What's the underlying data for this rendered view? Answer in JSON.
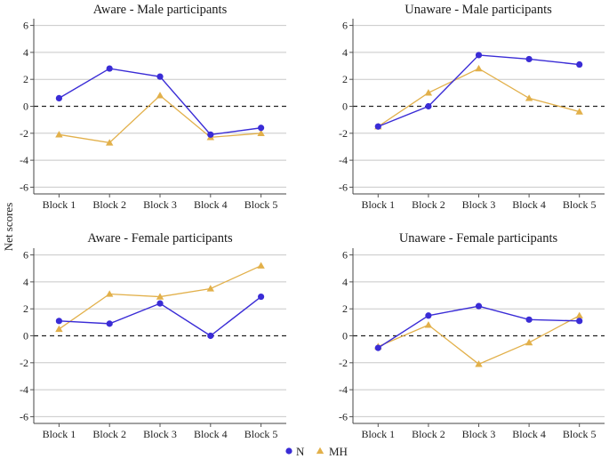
{
  "colors": {
    "N": "#3a2cd6",
    "MH": "#e2b04a",
    "grid": "#c8c8c8",
    "zero": "#222222"
  },
  "ylabel": "Net scores",
  "legend": [
    {
      "name": "N",
      "marker": "circle"
    },
    {
      "name": "MH",
      "marker": "triangle"
    }
  ],
  "chart_data": [
    {
      "type": "line",
      "title": "Aware - Male participants",
      "categories": [
        "Block 1",
        "Block 2",
        "Block 3",
        "Block 4",
        "Block 5"
      ],
      "yticks": [
        6,
        4,
        2,
        0,
        -2,
        -4,
        -6
      ],
      "ylim": [
        -6.5,
        6.5
      ],
      "series": [
        {
          "name": "N",
          "values": [
            0.6,
            2.8,
            2.2,
            -2.1,
            -1.6
          ]
        },
        {
          "name": "MH",
          "values": [
            -2.1,
            -2.7,
            0.8,
            -2.3,
            -2.0
          ]
        }
      ]
    },
    {
      "type": "line",
      "title": "Unaware - Male participants",
      "categories": [
        "Block 1",
        "Block 2",
        "Block 3",
        "Block 4",
        "Block 5"
      ],
      "yticks": [
        6,
        4,
        2,
        0,
        -2,
        -4,
        -6
      ],
      "ylim": [
        -6.5,
        6.5
      ],
      "series": [
        {
          "name": "N",
          "values": [
            -1.5,
            0.0,
            3.8,
            3.5,
            3.1
          ]
        },
        {
          "name": "MH",
          "values": [
            -1.5,
            1.0,
            2.8,
            0.6,
            -0.4
          ]
        }
      ]
    },
    {
      "type": "line",
      "title": "Aware - Female participants",
      "categories": [
        "Block 1",
        "Block 2",
        "Block 3",
        "Block 4",
        "Block 5"
      ],
      "yticks": [
        6,
        4,
        2,
        0,
        -2,
        -4,
        -6
      ],
      "ylim": [
        -6.5,
        6.5
      ],
      "series": [
        {
          "name": "N",
          "values": [
            1.1,
            0.9,
            2.4,
            0.0,
            2.9
          ]
        },
        {
          "name": "MH",
          "values": [
            0.5,
            3.1,
            2.9,
            3.5,
            5.2
          ]
        }
      ]
    },
    {
      "type": "line",
      "title": "Unaware - Female participants",
      "categories": [
        "Block 1",
        "Block 2",
        "Block 3",
        "Block 4",
        "Block 5"
      ],
      "yticks": [
        6,
        4,
        2,
        0,
        -2,
        -4,
        -6
      ],
      "ylim": [
        -6.5,
        6.5
      ],
      "series": [
        {
          "name": "N",
          "values": [
            -0.9,
            1.5,
            2.2,
            1.2,
            1.1
          ]
        },
        {
          "name": "MH",
          "values": [
            -0.8,
            0.8,
            -2.1,
            -0.5,
            1.5
          ]
        }
      ]
    }
  ]
}
